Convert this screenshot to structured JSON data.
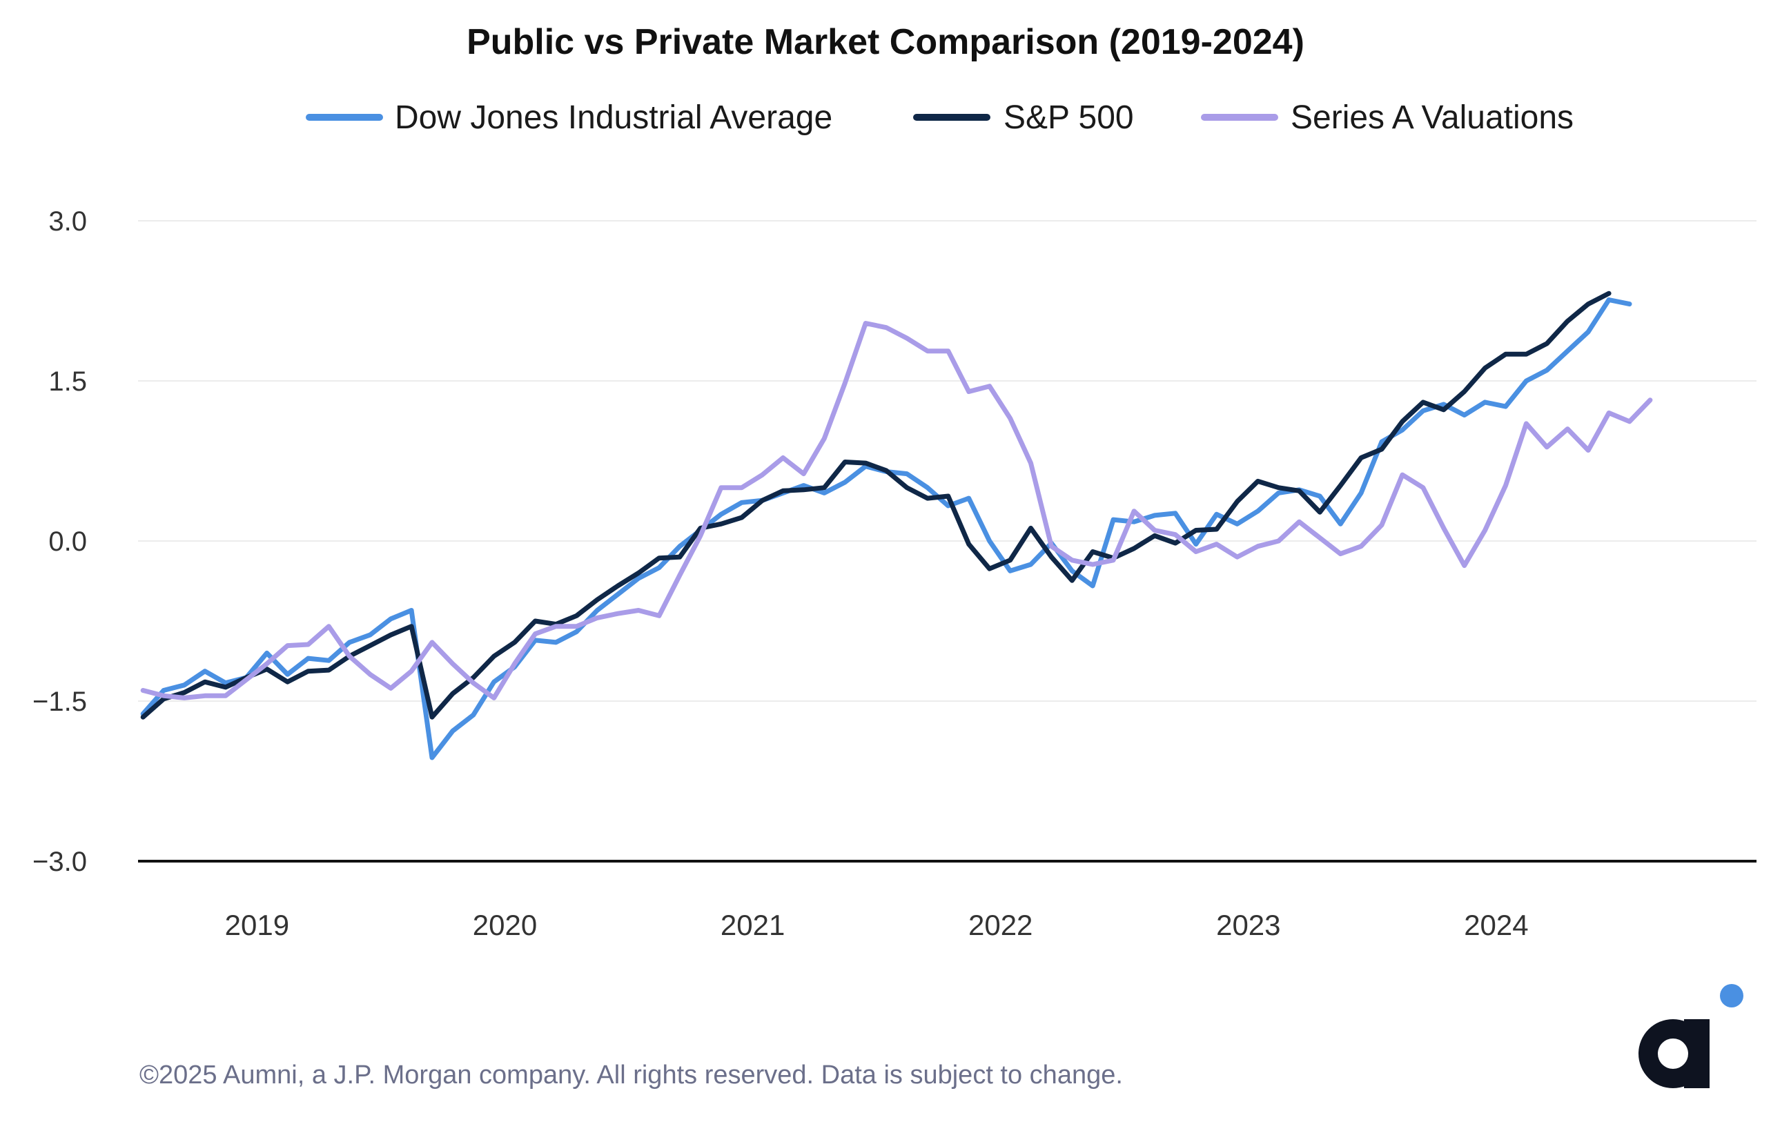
{
  "chart_data": {
    "type": "line",
    "title": "Public vs Private Market Comparison (2019-2024)",
    "xlabel": "",
    "ylabel": "",
    "ylim": [
      -3.0,
      3.0
    ],
    "yticks": [
      3.0,
      1.5,
      0.0,
      -1.5,
      -3.0
    ],
    "ytick_labels": [
      "3.0",
      "1.5",
      "0.0",
      "−1.5",
      "−3.0"
    ],
    "xticks": [
      2019,
      2020,
      2021,
      2022,
      2023,
      2024
    ],
    "xtick_labels": [
      "2019",
      "2020",
      "2021",
      "2022",
      "2023",
      "2024"
    ],
    "x_range": [
      2018.52,
      2025.05
    ],
    "grid": "horizontal",
    "legend_position": "top-center",
    "series": [
      {
        "name": "Dow Jones Industrial Average",
        "color": "#4A90E2",
        "x_start": 2018.54,
        "x_step": 0.0833,
        "values": [
          -1.62,
          -1.4,
          -1.35,
          -1.22,
          -1.33,
          -1.28,
          -1.05,
          -1.25,
          -1.1,
          -1.12,
          -0.95,
          -0.88,
          -0.73,
          -0.65,
          -2.03,
          -1.78,
          -1.63,
          -1.32,
          -1.18,
          -0.93,
          -0.95,
          -0.85,
          -0.65,
          -0.5,
          -0.35,
          -0.25,
          -0.05,
          0.1,
          0.25,
          0.36,
          0.38,
          0.45,
          0.52,
          0.45,
          0.55,
          0.7,
          0.65,
          0.63,
          0.5,
          0.33,
          0.4,
          0.0,
          -0.28,
          -0.22,
          -0.02,
          -0.28,
          -0.42,
          0.2,
          0.18,
          0.24,
          0.26,
          -0.03,
          0.25,
          0.16,
          0.28,
          0.45,
          0.48,
          0.42,
          0.16,
          0.45,
          0.93,
          1.04,
          1.22,
          1.28,
          1.18,
          1.3,
          1.26,
          1.5,
          1.6,
          1.78,
          1.96,
          2.26,
          2.22
        ]
      },
      {
        "name": "S&P 500",
        "color": "#0F2747",
        "x_start": 2018.54,
        "x_step": 0.0833,
        "values": [
          -1.65,
          -1.48,
          -1.42,
          -1.32,
          -1.37,
          -1.28,
          -1.2,
          -1.32,
          -1.22,
          -1.21,
          -1.08,
          -0.98,
          -0.88,
          -0.8,
          -1.65,
          -1.43,
          -1.28,
          -1.08,
          -0.95,
          -0.75,
          -0.78,
          -0.7,
          -0.55,
          -0.42,
          -0.3,
          -0.16,
          -0.15,
          0.12,
          0.16,
          0.22,
          0.38,
          0.47,
          0.48,
          0.5,
          0.74,
          0.73,
          0.66,
          0.5,
          0.4,
          0.42,
          -0.03,
          -0.26,
          -0.18,
          0.12,
          -0.15,
          -0.37,
          -0.1,
          -0.16,
          -0.07,
          0.05,
          -0.02,
          0.1,
          0.11,
          0.37,
          0.56,
          0.5,
          0.47,
          0.27,
          0.52,
          0.78,
          0.86,
          1.12,
          1.3,
          1.23,
          1.4,
          1.62,
          1.75,
          1.75,
          1.85,
          2.06,
          2.22,
          2.32
        ]
      },
      {
        "name": "Series A Valuations",
        "color": "#A99CE8",
        "x_start": 2018.54,
        "x_step": 0.0833,
        "values": [
          -1.4,
          -1.45,
          -1.47,
          -1.45,
          -1.45,
          -1.3,
          -1.15,
          -0.98,
          -0.97,
          -0.8,
          -1.08,
          -1.25,
          -1.38,
          -1.22,
          -0.95,
          -1.15,
          -1.33,
          -1.47,
          -1.15,
          -0.87,
          -0.8,
          -0.8,
          -0.72,
          -0.68,
          -0.65,
          -0.7,
          -0.32,
          0.05,
          0.5,
          0.5,
          0.62,
          0.78,
          0.63,
          0.96,
          1.48,
          2.04,
          2.0,
          1.9,
          1.78,
          1.78,
          1.4,
          1.45,
          1.15,
          0.73,
          -0.05,
          -0.18,
          -0.22,
          -0.18,
          0.28,
          0.1,
          0.06,
          -0.1,
          -0.03,
          -0.15,
          -0.05,
          0.0,
          0.18,
          0.03,
          -0.12,
          -0.05,
          0.15,
          0.62,
          0.5,
          0.12,
          -0.23,
          0.1,
          0.52,
          1.1,
          0.88,
          1.05,
          0.85,
          1.2,
          1.12,
          1.32
        ]
      }
    ],
    "footer": "©2025 Aumni, a J.P. Morgan company. All rights reserved. Data is subject to change.",
    "logo_text": "a",
    "colors": {
      "text": "#1a1a1a",
      "tick_text": "#333333",
      "footer_text": "#6B6F8A",
      "grid": "#ECECEC",
      "baseline": "#111111",
      "logo_dark": "#0E1320",
      "logo_dot": "#4A90E2"
    }
  }
}
